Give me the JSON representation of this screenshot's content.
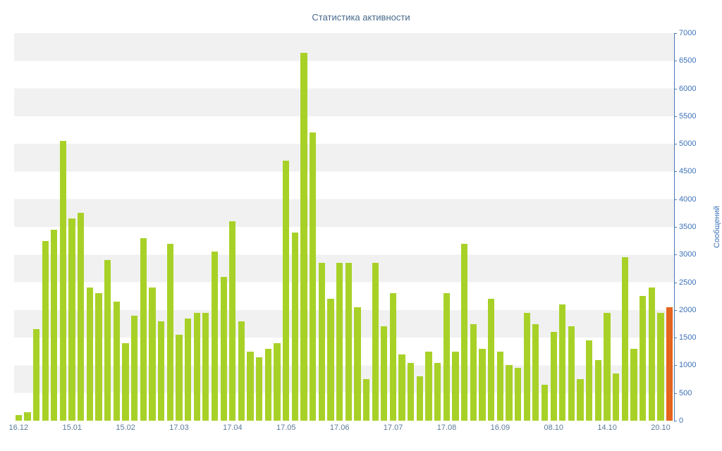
{
  "chart": {
    "title": "Статистика активности",
    "y_axis_label": "Сообщений",
    "colors": {
      "bar": "#a8d128",
      "highlight": "#e5641e",
      "stripe": "#f1f1f1",
      "background": "#ffffff",
      "axis": "#4a7ab5",
      "title_text": "#46698c",
      "y_tick_text": "#3c72b8",
      "x_label_text": "#5a7a99"
    }
  },
  "chart_data": {
    "type": "bar",
    "title": "Статистика активности",
    "ylabel": "Сообщений",
    "xlabel": "",
    "ylim": [
      0,
      7000
    ],
    "y_tick_step": 500,
    "y_ticks": [
      0,
      500,
      1000,
      1500,
      2000,
      2500,
      3000,
      3500,
      4000,
      4500,
      5000,
      5500,
      6000,
      6500,
      7000
    ],
    "grid": "striped-bands-500",
    "legend": "none",
    "x_tick_labels": [
      "16.12",
      "15.01",
      "15.02",
      "17.03",
      "17.04",
      "17.05",
      "17.06",
      "17.07",
      "17.08",
      "16.09",
      "08.10",
      "14.10",
      "20.10"
    ],
    "x_tick_bar_indices": [
      0,
      6,
      12,
      18,
      24,
      30,
      36,
      42,
      48,
      54,
      60,
      66,
      72
    ],
    "values": [
      100,
      150,
      1650,
      3250,
      3450,
      5050,
      3650,
      3750,
      2400,
      2300,
      2900,
      2150,
      1400,
      1900,
      3300,
      2400,
      1800,
      3200,
      1550,
      1850,
      1950,
      1950,
      3050,
      2600,
      3600,
      1800,
      1250,
      1150,
      1300,
      1400,
      4700,
      3400,
      6650,
      5200,
      2850,
      2200,
      2850,
      2850,
      2050,
      750,
      2850,
      1700,
      2300,
      1200,
      1050,
      800,
      1250,
      1050,
      2300,
      1250,
      3200,
      1750,
      1300,
      2200,
      1250,
      1000,
      950,
      1950,
      1750,
      650,
      1600,
      2100,
      1700,
      750,
      1450,
      1100,
      1950,
      850,
      2950,
      1300,
      2250,
      2400,
      1950,
      2050
    ],
    "highlight_last": true
  }
}
